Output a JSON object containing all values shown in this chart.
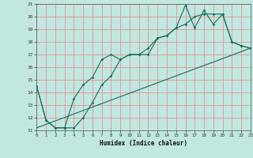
{
  "title": "",
  "xlabel": "Humidex (Indice chaleur)",
  "xlim": [
    0,
    23
  ],
  "ylim": [
    11,
    21
  ],
  "xticks": [
    0,
    1,
    2,
    3,
    4,
    5,
    6,
    7,
    8,
    9,
    10,
    11,
    12,
    13,
    14,
    15,
    16,
    17,
    18,
    19,
    20,
    21,
    22,
    23
  ],
  "yticks": [
    11,
    12,
    13,
    14,
    15,
    16,
    17,
    18,
    19,
    20,
    21
  ],
  "bg_color": "#c0e8e0",
  "grid_color": "#e89090",
  "line_color": "#1a6b5a",
  "line1_x": [
    0,
    1,
    2,
    3,
    4,
    5,
    6,
    7,
    8,
    9,
    10,
    11,
    12,
    13,
    14,
    15,
    16,
    17,
    18,
    19,
    20,
    21,
    22,
    23
  ],
  "line1_y": [
    14.5,
    11.8,
    11.2,
    11.2,
    13.5,
    14.6,
    15.2,
    16.6,
    17.0,
    16.6,
    17.0,
    17.0,
    17.0,
    18.3,
    18.5,
    19.1,
    20.9,
    19.1,
    20.5,
    19.4,
    20.2,
    18.0,
    17.7,
    17.5
  ],
  "line2_x": [
    0,
    1,
    2,
    3,
    4,
    5,
    6,
    7,
    8,
    9,
    10,
    11,
    12,
    13,
    14,
    15,
    16,
    17,
    18,
    19,
    20,
    21,
    22,
    23
  ],
  "line2_y": [
    14.5,
    11.8,
    11.2,
    11.2,
    11.2,
    12.0,
    13.2,
    14.6,
    15.3,
    16.6,
    17.0,
    17.0,
    17.5,
    18.3,
    18.5,
    19.1,
    19.4,
    20.0,
    20.2,
    20.2,
    20.2,
    18.0,
    17.7,
    17.5
  ],
  "line3_x": [
    0,
    23
  ],
  "line3_y": [
    11.2,
    17.5
  ]
}
